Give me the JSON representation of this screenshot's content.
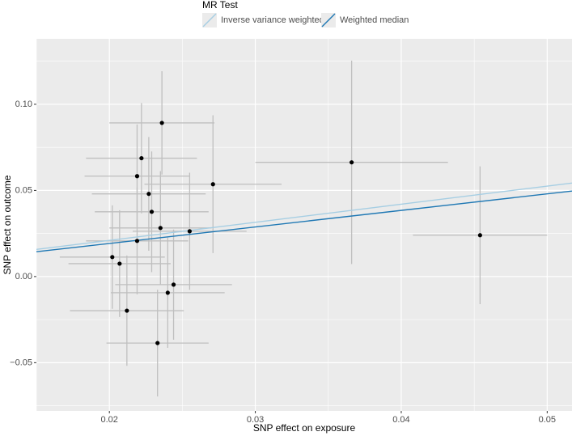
{
  "chart_data": {
    "type": "scatter",
    "xlabel": "SNP effect on exposure",
    "ylabel": "SNP effect on outcome",
    "legend_title": "MR Test",
    "legend": "top",
    "x": [
      0.0236,
      0.0222,
      0.0219,
      0.0227,
      0.0229,
      0.0271,
      0.0235,
      0.0255,
      0.0219,
      0.0366,
      0.0454,
      0.0202,
      0.0207,
      0.0244,
      0.024,
      0.0212,
      0.0233
    ],
    "values": [
      0.0892,
      0.0687,
      0.0583,
      0.048,
      0.0376,
      0.0536,
      0.0282,
      0.0263,
      0.0207,
      0.0663,
      0.024,
      0.0113,
      0.0075,
      -0.0047,
      -0.0094,
      -0.0198,
      -0.0386
    ],
    "xerr": [
      0.0036,
      0.0038,
      0.0036,
      0.0039,
      0.0039,
      0.0047,
      0.0035,
      0.0039,
      0.0035,
      0.0066,
      0.0046,
      0.0036,
      0.0035,
      0.004,
      0.0039,
      0.0039,
      0.0035
    ],
    "yerr": [
      0.03,
      0.032,
      0.03,
      0.033,
      0.035,
      0.04,
      0.033,
      0.034,
      0.031,
      0.059,
      0.04,
      0.03,
      0.031,
      0.032,
      0.032,
      0.032,
      0.031
    ],
    "point_color": "#000000",
    "errorbar_color": "#bfbfbf",
    "series": [
      {
        "name": "Inverse variance weighted",
        "color": "#a6cee3",
        "slope": 1.05
      },
      {
        "name": "Weighted median",
        "color": "#1f78b4",
        "slope": 0.96
      }
    ],
    "xlim": [
      0.015,
      0.0517
    ],
    "ylim": [
      -0.078,
      0.138
    ],
    "xticks": [
      0.02,
      0.03,
      0.04,
      0.05
    ],
    "yticks": [
      {
        "value": 0.1,
        "label": "0.10"
      },
      {
        "value": 0.05,
        "label": "0.05"
      },
      {
        "value": 0,
        "label": "0.00"
      },
      {
        "value": -0.05,
        "label": "−0.05"
      }
    ],
    "xminor": [
      0.015,
      0.025,
      0.035,
      0.045
    ],
    "yminor": [
      0.125,
      0.075,
      0.025,
      -0.025,
      -0.075
    ],
    "grid": true
  }
}
